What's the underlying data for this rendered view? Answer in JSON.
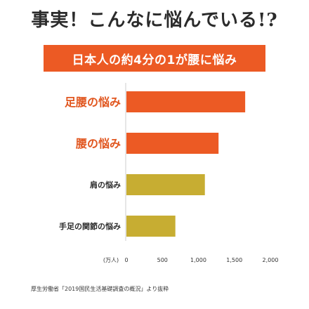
{
  "headline": "事実！こんなに悩んでいる!?",
  "banner": "日本人の約4分の1が腰に悩み",
  "source": "厚生労働省「2019国民生活基礎調査の概況」より抜粋",
  "colors": {
    "accent": "#ec5a24",
    "highlight_label": "#e15720",
    "muted_bar": "#c7ad32",
    "normal_label": "#2b2b2b"
  },
  "chart_data": {
    "type": "bar",
    "orientation": "horizontal",
    "categories": [
      "足腰の悩み",
      "腰の悩み",
      "肩の悩み",
      "手足の関節の悩み"
    ],
    "values": [
      1650,
      1280,
      1090,
      680
    ],
    "bar_colors": [
      "#ec5a24",
      "#ec5a24",
      "#c7ad32",
      "#c7ad32"
    ],
    "label_emphasis": [
      "large",
      "large",
      "small",
      "small"
    ],
    "xaxis_unit": "(万人)",
    "xticks": [
      0,
      500,
      1000,
      1500,
      2000
    ],
    "xtick_labels": [
      "0",
      "500",
      "1,000",
      "1,500",
      "2,000"
    ],
    "xlim": [
      0,
      2000
    ],
    "grid": false
  }
}
